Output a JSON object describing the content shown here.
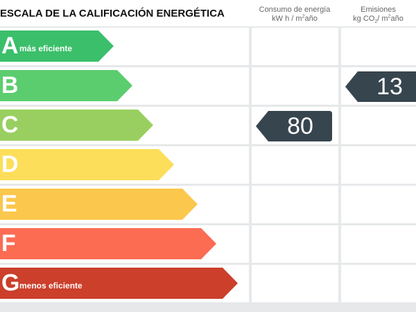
{
  "title": "ESCALA DE LA CALIFICACIÓN ENERGÉTICA",
  "columns": {
    "consumption": {
      "line1": "Consumo de energía",
      "line2_prefix": "kW h / m",
      "line2_sup": "2",
      "line2_suffix": "año"
    },
    "emissions": {
      "line1": "Emisiones",
      "line2_prefix": "kg CO",
      "line2_sub": "2",
      "line2_mid": "/ m",
      "line2_sup": "2",
      "line2_suffix": "año"
    }
  },
  "bands": [
    {
      "letter": "A",
      "note": "más eficiente",
      "color": "#3bbf6a"
    },
    {
      "letter": "B",
      "note": "",
      "color": "#5ccd6f"
    },
    {
      "letter": "C",
      "note": "",
      "color": "#99cf60"
    },
    {
      "letter": "D",
      "note": "",
      "color": "#fcde5a"
    },
    {
      "letter": "E",
      "note": "",
      "color": "#fbc74c"
    },
    {
      "letter": "F",
      "note": "",
      "color": "#fb6c53"
    },
    {
      "letter": "G",
      "note": "menos eficiente",
      "color": "#cb3f2b"
    }
  ],
  "rating": {
    "consumption": {
      "value": "80",
      "class": "C"
    },
    "emissions": {
      "value": "13",
      "class": "B"
    },
    "indicator_color": "#37454e"
  }
}
